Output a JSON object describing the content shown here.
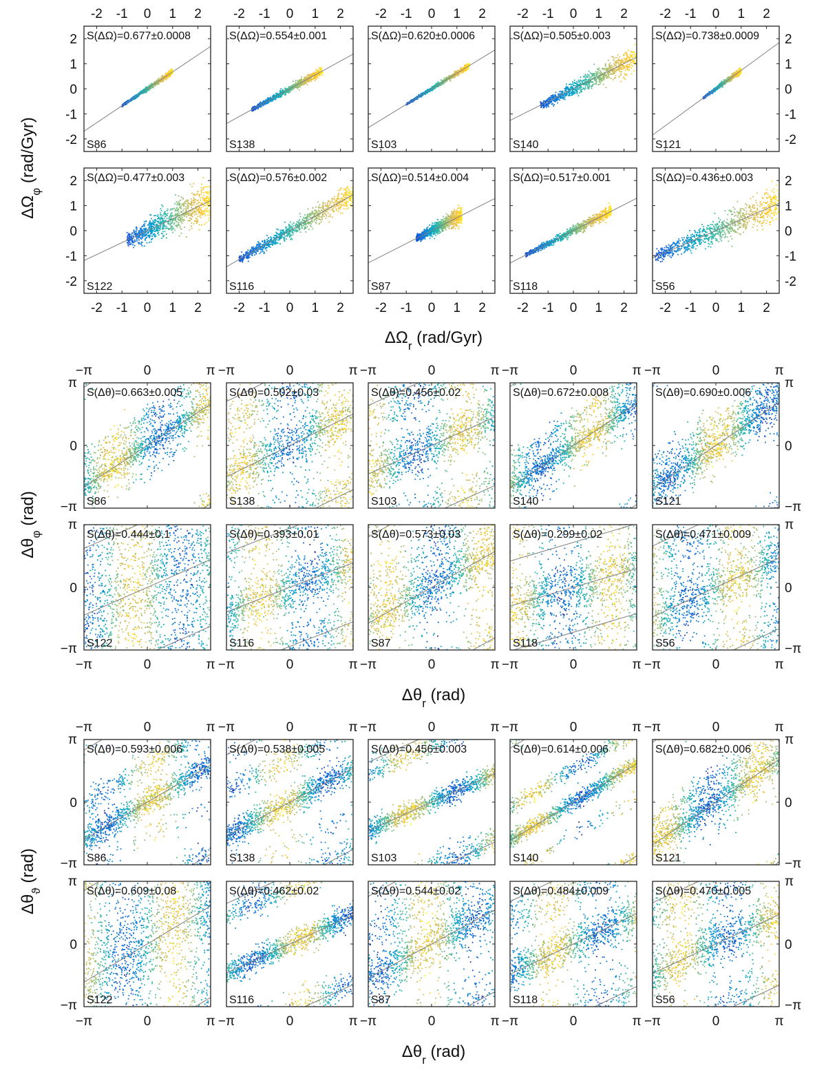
{
  "figure": {
    "sections": [
      {
        "id": "freq",
        "xlabel": "ΔΩ_r (rad/Gyr)",
        "ylabel": "ΔΩ_φ (rad/Gyr)",
        "xlim": [
          -2.5,
          2.5
        ],
        "ylim": [
          -2.5,
          2.5
        ],
        "xticks": [
          -2,
          -1,
          0,
          1,
          2
        ],
        "xticklabels": [
          "-2",
          "-1",
          "0",
          "1",
          "2"
        ],
        "yticks": [
          -2,
          -1,
          0,
          1,
          2
        ],
        "yticklabels": [
          "-2",
          "-1",
          "0",
          "1",
          "2"
        ]
      },
      {
        "id": "angle_phi",
        "xlabel": "Δθ_r (rad)",
        "ylabel": "Δθ_φ (rad)",
        "xlim": [
          -3.1416,
          3.1416
        ],
        "ylim": [
          -3.1416,
          3.1416
        ],
        "xticks": [
          -3.1416,
          0,
          3.1416
        ],
        "xticklabels": [
          "−π",
          "0",
          "π"
        ],
        "yticks": [
          -3.1416,
          0,
          3.1416
        ],
        "yticklabels": [
          "−π",
          "0",
          "π"
        ]
      },
      {
        "id": "angle_theta",
        "xlabel": "Δθ_r (rad)",
        "ylabel": "Δθ_ϑ (rad)",
        "xlim": [
          -3.1416,
          3.1416
        ],
        "ylim": [
          -3.1416,
          3.1416
        ],
        "xticks": [
          -3.1416,
          0,
          3.1416
        ],
        "xticklabels": [
          "−π",
          "0",
          "π"
        ],
        "yticks": [
          -3.1416,
          0,
          3.1416
        ],
        "yticklabels": [
          "−π",
          "0",
          "π"
        ]
      }
    ]
  },
  "chart_data": [
    {
      "type": "scatter",
      "section": "freq",
      "row": 0,
      "col": 0,
      "label": "S86",
      "stat": "S(ΔΩ)=0.677±0.0008",
      "fit_slope": 0.677,
      "x_range": [
        -1.0,
        1.0
      ],
      "spread": 0.05
    },
    {
      "type": "scatter",
      "section": "freq",
      "row": 0,
      "col": 1,
      "label": "S138",
      "stat": "S(ΔΩ)=0.554±0.001",
      "fit_slope": 0.554,
      "x_range": [
        -1.5,
        1.3
      ],
      "spread": 0.08
    },
    {
      "type": "scatter",
      "section": "freq",
      "row": 0,
      "col": 2,
      "label": "S103",
      "stat": "S(ΔΩ)=0.620±0.0006",
      "fit_slope": 0.62,
      "x_range": [
        -1.0,
        1.5
      ],
      "spread": 0.05
    },
    {
      "type": "scatter",
      "section": "freq",
      "row": 0,
      "col": 3,
      "label": "S140",
      "stat": "S(ΔΩ)=0.505±0.003",
      "fit_slope": 0.505,
      "x_range": [
        -1.3,
        2.5
      ],
      "spread": 0.2
    },
    {
      "type": "scatter",
      "section": "freq",
      "row": 0,
      "col": 4,
      "label": "S121",
      "stat": "S(ΔΩ)=0.738±0.0009",
      "fit_slope": 0.738,
      "x_range": [
        -0.5,
        1.0
      ],
      "spread": 0.05
    },
    {
      "type": "scatter",
      "section": "freq",
      "row": 1,
      "col": 0,
      "label": "S122",
      "stat": "S(ΔΩ)=0.477±0.003",
      "fit_slope": 0.477,
      "x_range": [
        -0.8,
        2.5
      ],
      "spread": 0.35
    },
    {
      "type": "scatter",
      "section": "freq",
      "row": 1,
      "col": 1,
      "label": "S116",
      "stat": "S(ΔΩ)=0.576±0.002",
      "fit_slope": 0.576,
      "x_range": [
        -2.0,
        2.5
      ],
      "spread": 0.2
    },
    {
      "type": "scatter",
      "section": "freq",
      "row": 1,
      "col": 2,
      "label": "S87",
      "stat": "S(ΔΩ)=0.514±0.004",
      "fit_slope": 0.514,
      "x_range": [
        -0.6,
        1.2
      ],
      "spread": 0.15
    },
    {
      "type": "scatter",
      "section": "freq",
      "row": 1,
      "col": 3,
      "label": "S118",
      "stat": "S(ΔΩ)=0.517±0.001",
      "fit_slope": 0.517,
      "x_range": [
        -1.9,
        1.5
      ],
      "spread": 0.1
    },
    {
      "type": "scatter",
      "section": "freq",
      "row": 1,
      "col": 4,
      "label": "S56",
      "stat": "S(ΔΩ)=0.436±0.003",
      "fit_slope": 0.436,
      "x_range": [
        -2.4,
        2.5
      ],
      "spread": 0.3
    },
    {
      "type": "scatter",
      "section": "angle_phi",
      "row": 0,
      "col": 0,
      "label": "S86",
      "stat": "S(Δθ)=0.663±0.005",
      "fit_slope": 0.663,
      "spread": 0.35
    },
    {
      "type": "scatter",
      "section": "angle_phi",
      "row": 0,
      "col": 1,
      "label": "S138",
      "stat": "S(Δθ)=0.502±0.03",
      "fit_slope": 0.502,
      "spread": 0.6
    },
    {
      "type": "scatter",
      "section": "angle_phi",
      "row": 0,
      "col": 2,
      "label": "S103",
      "stat": "S(Δθ)=0.456±0.02",
      "fit_slope": 0.456,
      "spread": 0.6
    },
    {
      "type": "scatter",
      "section": "angle_phi",
      "row": 0,
      "col": 3,
      "label": "S140",
      "stat": "S(Δθ)=0.672±0.008",
      "fit_slope": 0.672,
      "spread": 0.3
    },
    {
      "type": "scatter",
      "section": "angle_phi",
      "row": 0,
      "col": 4,
      "label": "S121",
      "stat": "S(Δθ)=0.690±0.006",
      "fit_slope": 0.69,
      "spread": 0.4
    },
    {
      "type": "scatter",
      "section": "angle_phi",
      "row": 1,
      "col": 0,
      "label": "S122",
      "stat": "S(Δθ)=0.444±0.1",
      "fit_slope": 0.444,
      "spread": 1.4
    },
    {
      "type": "scatter",
      "section": "angle_phi",
      "row": 1,
      "col": 1,
      "label": "S116",
      "stat": "S(Δθ)=0.393±0.01",
      "fit_slope": 0.393,
      "spread": 0.7
    },
    {
      "type": "scatter",
      "section": "angle_phi",
      "row": 1,
      "col": 2,
      "label": "S87",
      "stat": "S(Δθ)=0.573±0.03",
      "fit_slope": 0.573,
      "spread": 0.6
    },
    {
      "type": "scatter",
      "section": "angle_phi",
      "row": 1,
      "col": 3,
      "label": "S118",
      "stat": "S(Δθ)=0.299±0.02",
      "fit_slope": 0.299,
      "spread": 0.7
    },
    {
      "type": "scatter",
      "section": "angle_phi",
      "row": 1,
      "col": 4,
      "label": "S56",
      "stat": "S(Δθ)=0.471±0.009",
      "fit_slope": 0.471,
      "spread": 0.7
    },
    {
      "type": "scatter",
      "section": "angle_theta",
      "row": 0,
      "col": 0,
      "label": "S86",
      "stat": "S(Δθ)=0.593±0.006",
      "fit_slope": 0.593,
      "spread": 0.35
    },
    {
      "type": "scatter",
      "section": "angle_theta",
      "row": 0,
      "col": 1,
      "label": "S138",
      "stat": "S(Δθ)=0.538±0.005",
      "fit_slope": 0.538,
      "spread": 0.35
    },
    {
      "type": "scatter",
      "section": "angle_theta",
      "row": 0,
      "col": 2,
      "label": "S103",
      "stat": "S(Δθ)=0.456±0.003",
      "fit_slope": 0.456,
      "spread": 0.25
    },
    {
      "type": "scatter",
      "section": "angle_theta",
      "row": 0,
      "col": 3,
      "label": "S140",
      "stat": "S(Δθ)=0.614±0.006",
      "fit_slope": 0.614,
      "spread": 0.2
    },
    {
      "type": "scatter",
      "section": "angle_theta",
      "row": 0,
      "col": 4,
      "label": "S121",
      "stat": "S(Δθ)=0.682±0.006",
      "fit_slope": 0.682,
      "spread": 0.35
    },
    {
      "type": "scatter",
      "section": "angle_theta",
      "row": 1,
      "col": 0,
      "label": "S122",
      "stat": "S(Δθ)=0.609±0.08",
      "fit_slope": 0.609,
      "spread": 1.3
    },
    {
      "type": "scatter",
      "section": "angle_theta",
      "row": 1,
      "col": 1,
      "label": "S116",
      "stat": "S(Δθ)=0.462±0.02",
      "fit_slope": 0.462,
      "spread": 0.3
    },
    {
      "type": "scatter",
      "section": "angle_theta",
      "row": 1,
      "col": 2,
      "label": "S87",
      "stat": "S(Δθ)=0.544±0.02",
      "fit_slope": 0.544,
      "spread": 0.6
    },
    {
      "type": "scatter",
      "section": "angle_theta",
      "row": 1,
      "col": 3,
      "label": "S118",
      "stat": "S(Δθ)=0.484±0.009",
      "fit_slope": 0.484,
      "spread": 0.5
    },
    {
      "type": "scatter",
      "section": "angle_theta",
      "row": 1,
      "col": 4,
      "label": "S56",
      "stat": "S(Δθ)=0.470±0.005",
      "fit_slope": 0.47,
      "spread": 0.6
    }
  ],
  "colormap": [
    "#352a87",
    "#0f5cdd",
    "#1481d6",
    "#06a4ca",
    "#2eb7a4",
    "#87bf77",
    "#d1bb59",
    "#fec832",
    "#f9fb0e"
  ],
  "fit_line_color": "#808080"
}
